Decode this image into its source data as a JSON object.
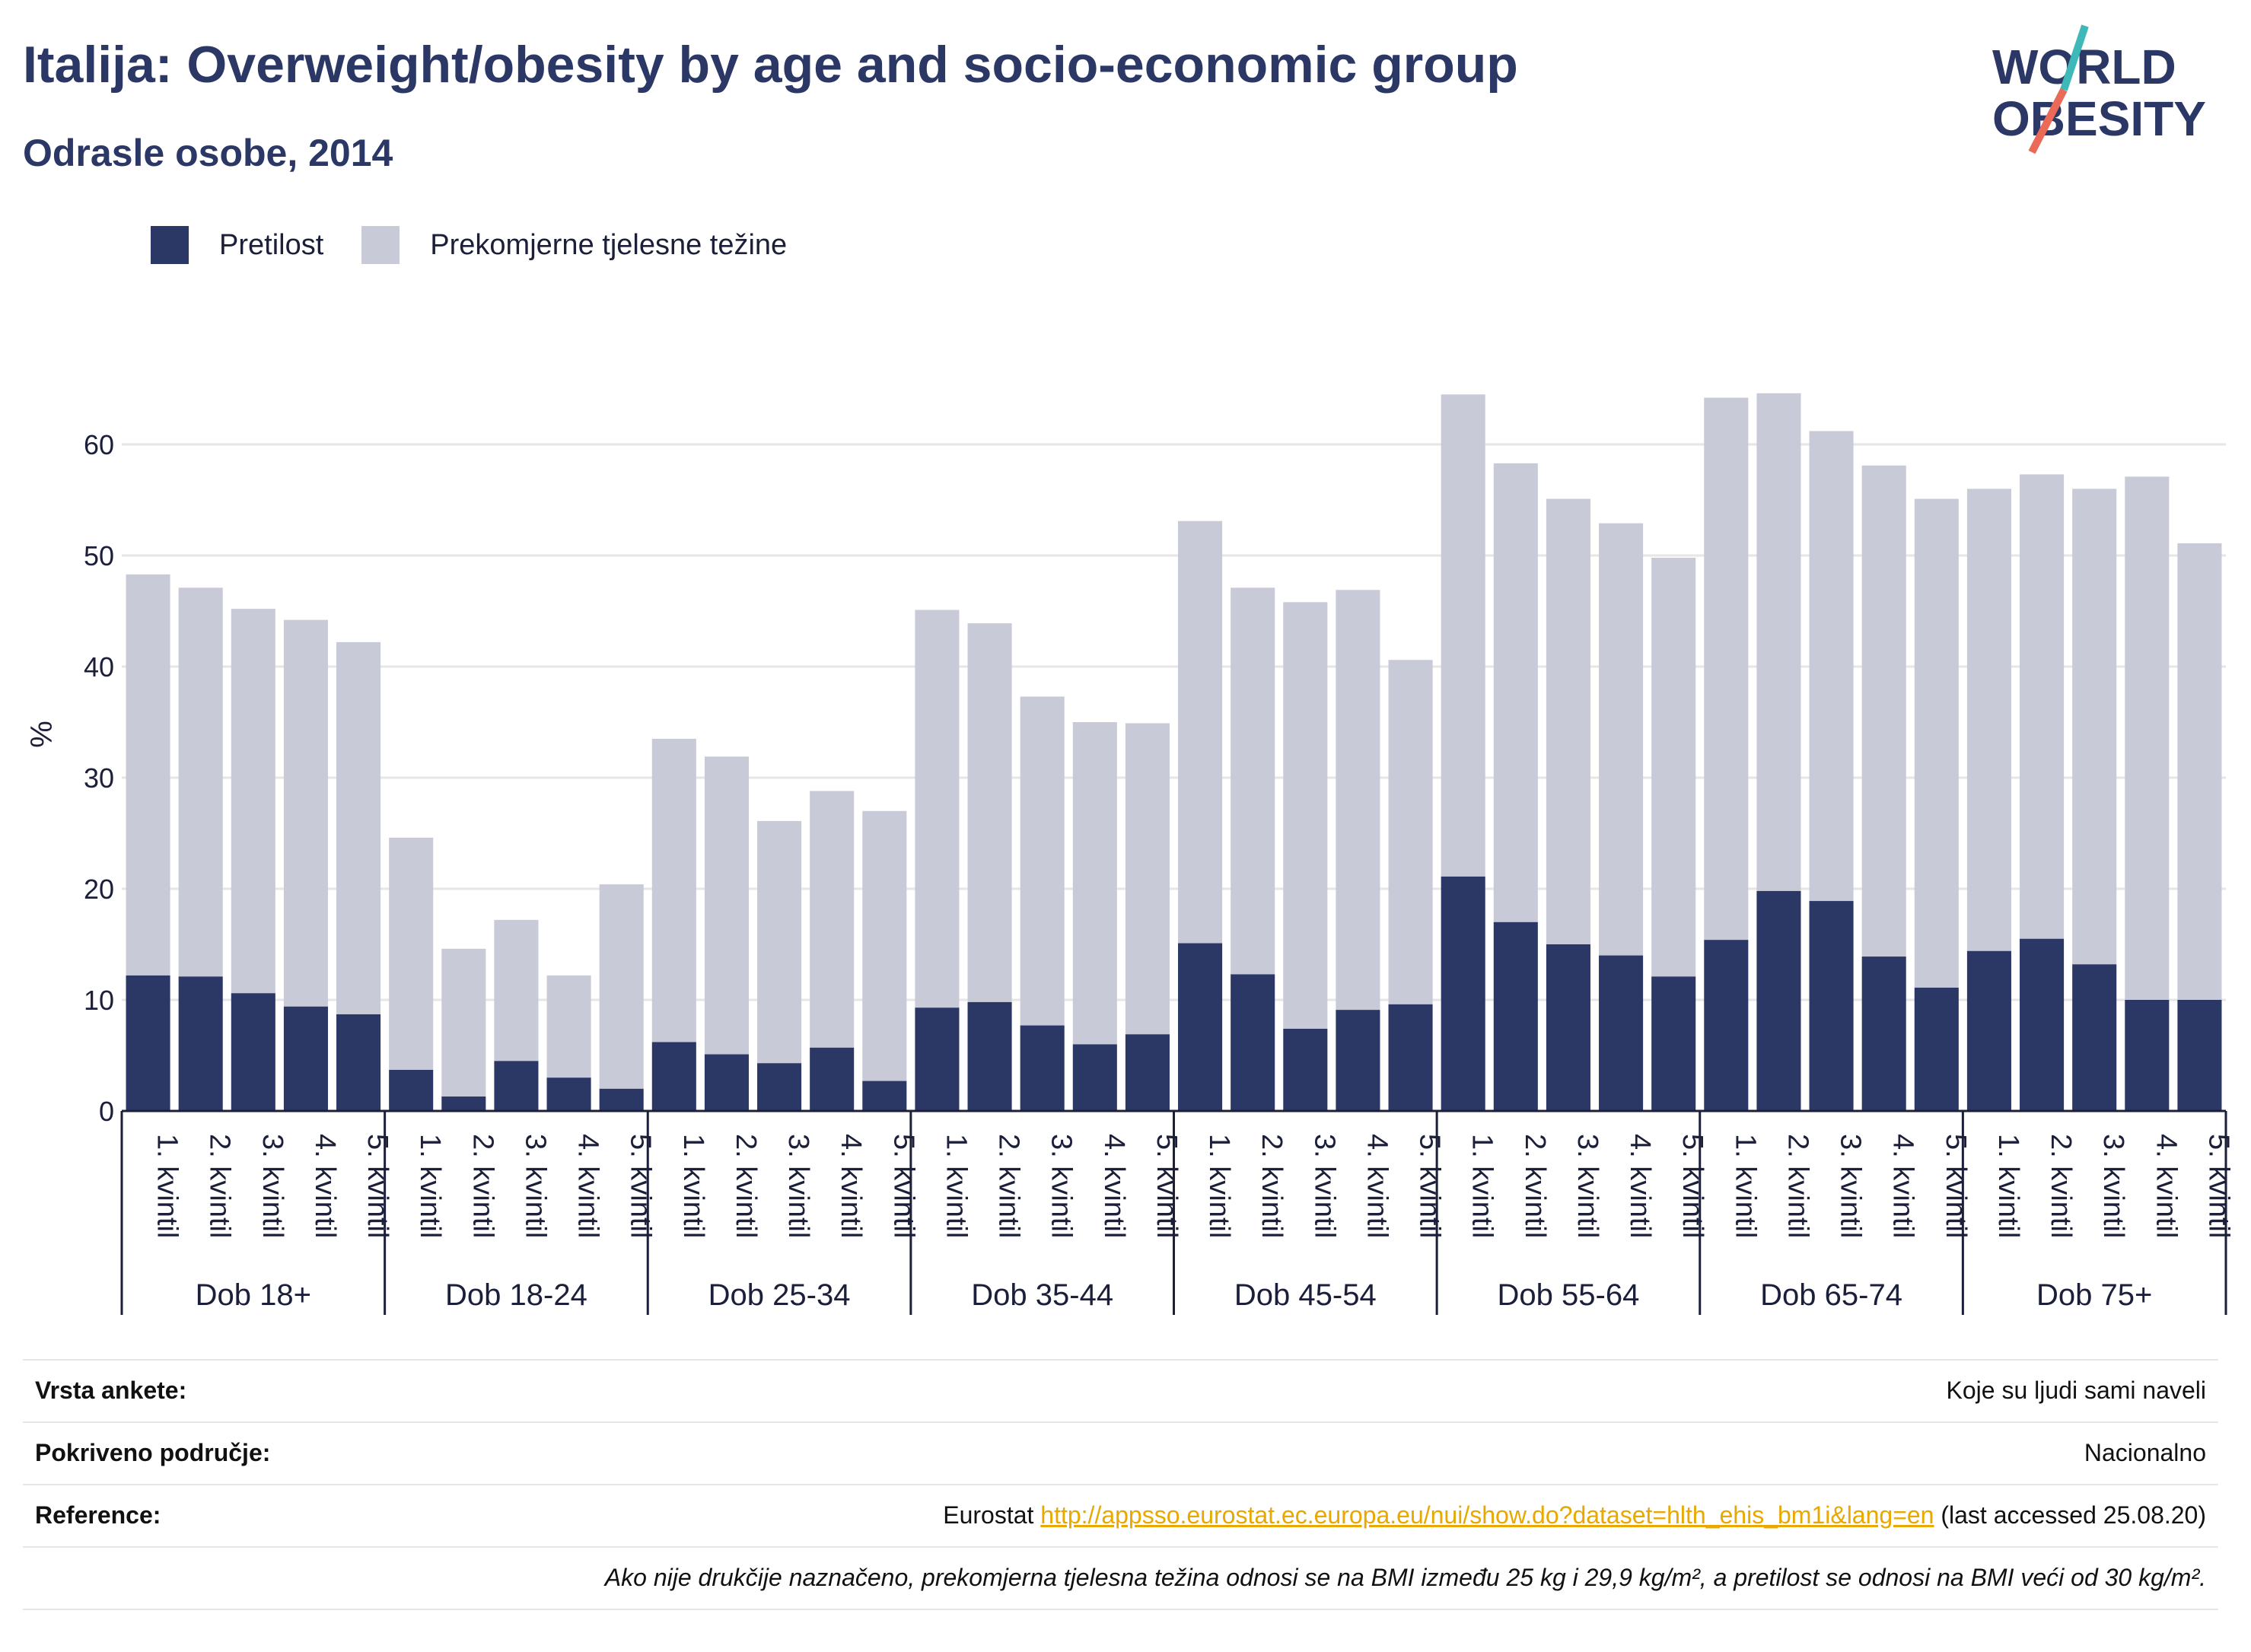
{
  "header": {
    "title": "Italija: Overweight/obesity by age and socio-economic group",
    "subtitle": "Odrasle osobe, 2014"
  },
  "logo": {
    "line1": "WORLD",
    "line2": "OBESITY"
  },
  "colors": {
    "obesity": "#2b3765",
    "overweight": "#c9cad7",
    "grid": "#e6e6e6",
    "axis": "#1b1f3a",
    "link": "#e8a800"
  },
  "chart_data": {
    "type": "bar",
    "stacked": true,
    "ylabel": "%",
    "ylim": [
      0,
      68
    ],
    "yticks": [
      0,
      10,
      20,
      30,
      40,
      50,
      60
    ],
    "grid": true,
    "legend_position": "top-left",
    "legend": [
      "Pretilost",
      "Prekomjerne tjelesne težine"
    ],
    "groups": [
      "Dob 18+",
      "Dob 18-24",
      "Dob 25-34",
      "Dob 35-44",
      "Dob 45-54",
      "Dob 55-64",
      "Dob 65-74",
      "Dob 75+"
    ],
    "categories": [
      "1. kvintil",
      "2. kvintil",
      "3. kvintil",
      "4. kvintil",
      "5. kvintil"
    ],
    "series": [
      {
        "name": "Pretilost",
        "values": [
          [
            12.2,
            12.1,
            10.6,
            9.4,
            8.7
          ],
          [
            3.7,
            1.3,
            4.5,
            3.0,
            2.0
          ],
          [
            6.2,
            5.1,
            4.3,
            5.7,
            2.7
          ],
          [
            9.3,
            9.8,
            7.7,
            6.0,
            6.9
          ],
          [
            15.1,
            12.3,
            7.4,
            9.1,
            9.6
          ],
          [
            21.1,
            17.0,
            15.0,
            14.0,
            12.1
          ],
          [
            15.4,
            19.8,
            18.9,
            13.9,
            11.1
          ],
          [
            14.4,
            15.5,
            13.2,
            10.0,
            10.0
          ]
        ]
      },
      {
        "name": "Prekomjerne tjelesne težine",
        "values": [
          [
            36.1,
            35.0,
            34.6,
            34.8,
            33.5
          ],
          [
            20.9,
            13.3,
            12.7,
            9.2,
            18.4
          ],
          [
            27.3,
            26.8,
            21.8,
            23.1,
            24.3
          ],
          [
            35.8,
            34.1,
            29.6,
            29.0,
            28.0
          ],
          [
            38.0,
            34.8,
            38.4,
            37.8,
            31.0
          ],
          [
            43.4,
            41.3,
            40.1,
            38.9,
            37.7
          ],
          [
            48.8,
            44.8,
            42.3,
            44.2,
            44.0
          ],
          [
            41.6,
            41.8,
            42.8,
            47.1,
            41.1
          ]
        ]
      }
    ]
  },
  "info": {
    "survey_type_label": "Vrsta ankete:",
    "survey_type_value": "Koje su ljudi sami naveli",
    "coverage_label": "Pokriveno područje:",
    "coverage_value": "Nacionalno",
    "reference_label": "Reference:",
    "reference_prefix": "Eurostat ",
    "reference_link": "http://appsso.eurostat.ec.europa.eu/nui/show.do?dataset=hlth_ehis_bm1i&lang=en",
    "reference_suffix": " (last accessed 25.08.20)",
    "note": "Ako nije drukčije naznačeno, prekomjerna tjelesna težina odnosi se na BMI između 25 kg i 29,9 kg/m², a pretilost se odnosi na BMI veći od 30 kg/m²."
  }
}
